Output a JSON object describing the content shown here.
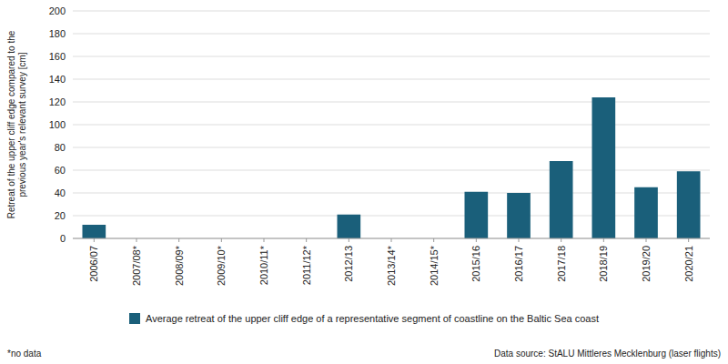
{
  "chart_data": {
    "type": "bar",
    "categories": [
      "2006/07",
      "2007/08*",
      "2008/09*",
      "2009/10*",
      "2010/11*",
      "2011/12*",
      "2012/13",
      "2013/14*",
      "2014/15*",
      "2015/16",
      "2016/17",
      "2017/18",
      "2018/19",
      "2019/20",
      "2020/21"
    ],
    "series": [
      {
        "name": "Average retreat of the upper cliff edge of a representative segment of coastline on the Baltic Sea coast",
        "color": "#1a5f7a",
        "values": [
          12,
          null,
          null,
          null,
          null,
          null,
          21,
          null,
          null,
          41,
          40,
          68,
          124,
          45,
          59
        ]
      }
    ],
    "ylim": [
      0,
      200
    ],
    "yticks": [
      0,
      20,
      40,
      60,
      80,
      100,
      120,
      140,
      160,
      180,
      200
    ],
    "ylabel": "Retreat of the upper cliff edge compared to the\nprevious year's relevant survey [cm]",
    "annotations": [
      "*no data",
      "Data source: StALU Mittleres Mecklenburg (laser flights)"
    ],
    "grid": true,
    "legend": "bottom"
  }
}
